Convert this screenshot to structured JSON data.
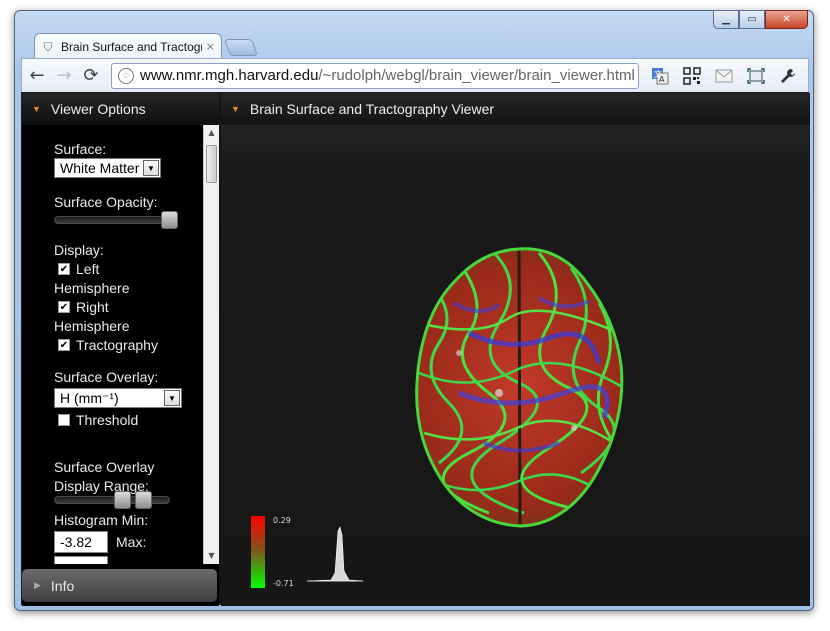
{
  "window": {
    "min_label": "▁",
    "max_label": "▭",
    "close_label": "✕"
  },
  "tab": {
    "title": "Brain Surface and Tractogra",
    "close": "×"
  },
  "nav": {
    "back": "←",
    "forward": "→",
    "reload": "⟳"
  },
  "address": {
    "domain": "www.nmr.mgh.harvard.edu",
    "path": "/~rudolph/webgl/brain_viewer/brain_viewer.html"
  },
  "toolbar_icons": [
    "translate-icon",
    "qr-code-icon",
    "mail-icon",
    "fullscreen-icon",
    "wrench-icon"
  ],
  "left_panel": {
    "title": "Viewer Options",
    "surface_label": "Surface:",
    "surface_value": "White Matter",
    "opacity_label": "Surface Opacity:",
    "opacity_value": 1.0,
    "display_label": "Display:",
    "left_hemi_a": "Left",
    "left_hemi_b": "Hemisphere",
    "left_hemi_checked": true,
    "right_hemi_a": "Right",
    "right_hemi_b": "Hemisphere",
    "right_hemi_checked": true,
    "tracto_label": "Tractography",
    "tracto_checked": true,
    "overlay_label": "Surface Overlay:",
    "overlay_value": "H (mm⁻¹)",
    "threshold_label": "Threshold",
    "threshold_checked": false,
    "range_label_a": "Surface Overlay",
    "range_label_b": "Display Range:",
    "histmin_label": "Histogram Min:",
    "histmin_value": "-3.82",
    "max_label": "Max:"
  },
  "info_label": "Info",
  "viewer": {
    "title": "Brain Surface and Tractography Viewer",
    "colorbar_max": "0.29",
    "colorbar_min": "-0.71"
  },
  "colors": {
    "accent": "#e08a2a",
    "panel_bg": "#000000",
    "viewer_bg": "#161616"
  }
}
